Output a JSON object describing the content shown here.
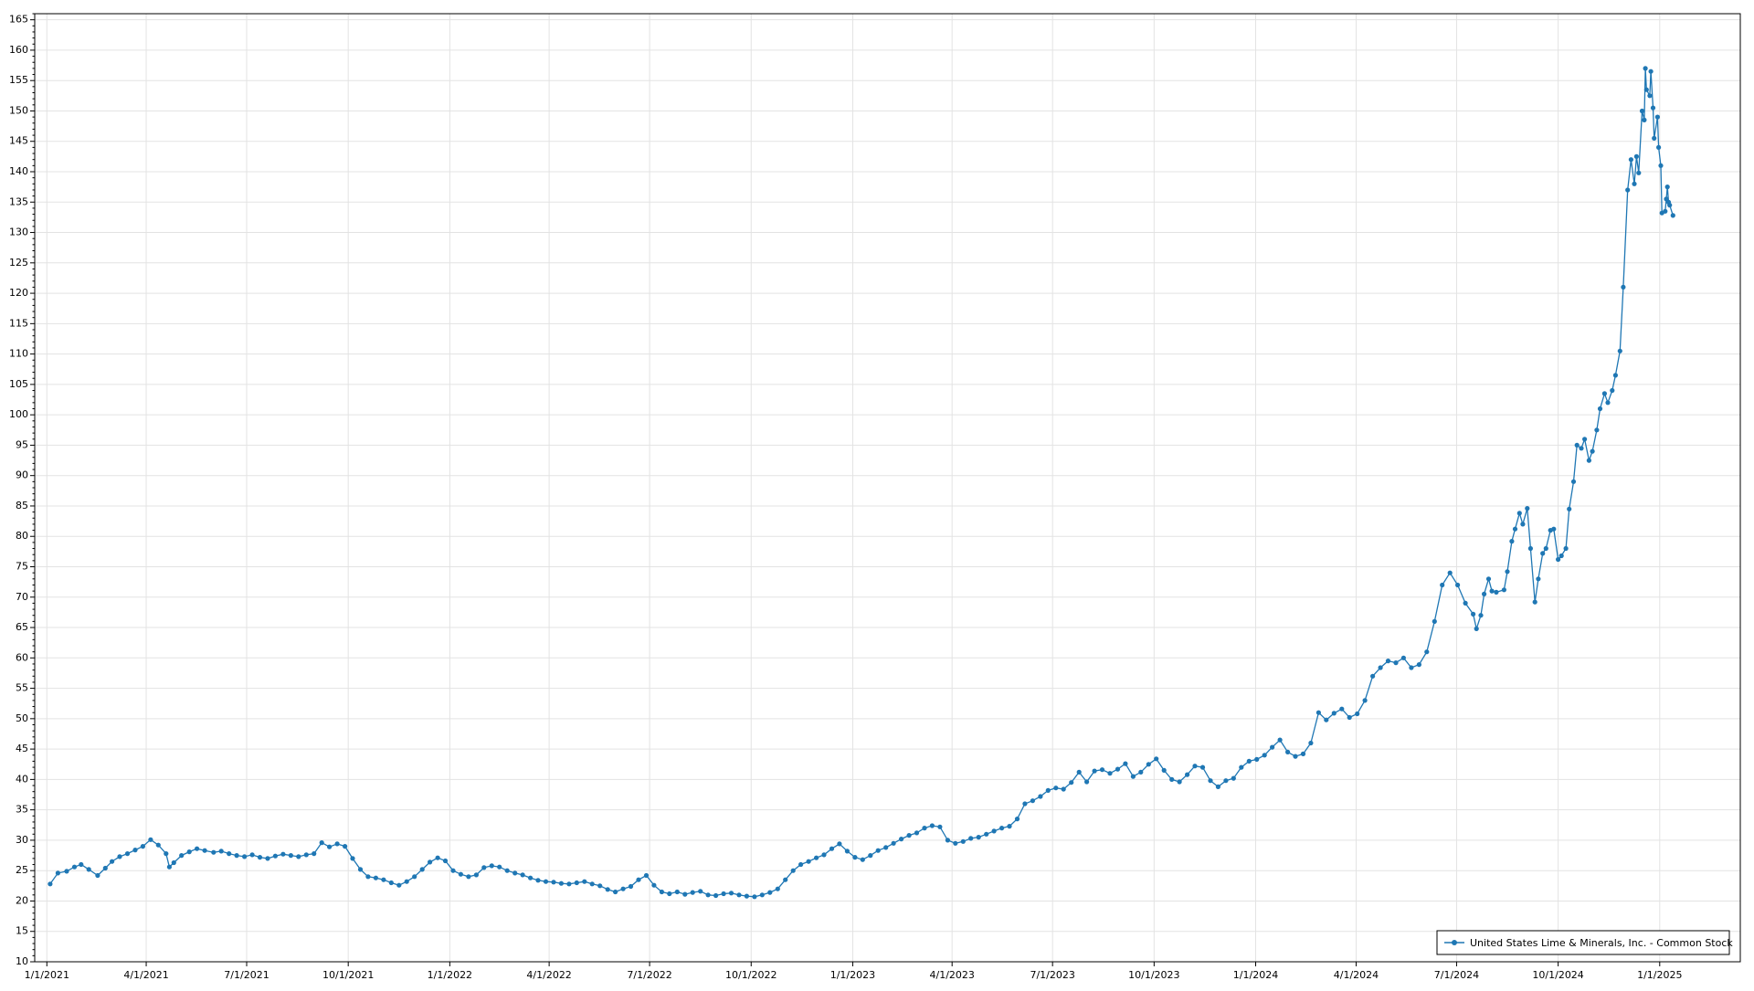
{
  "chart_data": {
    "type": "line",
    "title": "",
    "xlabel": "",
    "ylabel": "",
    "x_axis": {
      "type": "date",
      "range": [
        "2020-12-21",
        "2025-03-15"
      ],
      "ticks": [
        {
          "date": "2021-01-01",
          "label": "1/1/2021"
        },
        {
          "date": "2021-04-01",
          "label": "4/1/2021"
        },
        {
          "date": "2021-07-01",
          "label": "7/1/2021"
        },
        {
          "date": "2021-10-01",
          "label": "10/1/2021"
        },
        {
          "date": "2022-01-01",
          "label": "1/1/2022"
        },
        {
          "date": "2022-04-01",
          "label": "4/1/2022"
        },
        {
          "date": "2022-07-01",
          "label": "7/1/2022"
        },
        {
          "date": "2022-10-01",
          "label": "10/1/2022"
        },
        {
          "date": "2023-01-01",
          "label": "1/1/2023"
        },
        {
          "date": "2023-04-01",
          "label": "4/1/2023"
        },
        {
          "date": "2023-07-01",
          "label": "7/1/2023"
        },
        {
          "date": "2023-10-01",
          "label": "10/1/2023"
        },
        {
          "date": "2024-01-01",
          "label": "1/1/2024"
        },
        {
          "date": "2024-04-01",
          "label": "4/1/2024"
        },
        {
          "date": "2024-07-01",
          "label": "7/1/2024"
        },
        {
          "date": "2024-10-01",
          "label": "10/1/2024"
        },
        {
          "date": "2025-01-01",
          "label": "1/1/2025"
        }
      ]
    },
    "y_axis": {
      "min": 10,
      "max": 166,
      "major_step": 5,
      "ticks": [
        "10",
        "15",
        "20",
        "25",
        "30",
        "35",
        "40",
        "45",
        "50",
        "55",
        "60",
        "65",
        "70",
        "75",
        "80",
        "85",
        "90",
        "95",
        "100",
        "105",
        "110",
        "115",
        "120",
        "125",
        "130",
        "135",
        "140",
        "145",
        "150",
        "155",
        "160",
        "165"
      ]
    },
    "grid": true,
    "legend": {
      "position": "bottom-right"
    },
    "series": [
      {
        "name": "United States Lime & Minerals, Inc. - Common Stock",
        "color": "#1f77b4",
        "marker": "circle",
        "points": [
          [
            "2021-01-04",
            22.8
          ],
          [
            "2021-01-11",
            24.6
          ],
          [
            "2021-01-19",
            24.9
          ],
          [
            "2021-01-26",
            25.6
          ],
          [
            "2021-02-01",
            26.0
          ],
          [
            "2021-02-08",
            25.2
          ],
          [
            "2021-02-16",
            24.2
          ],
          [
            "2021-02-23",
            25.4
          ],
          [
            "2021-03-01",
            26.5
          ],
          [
            "2021-03-08",
            27.3
          ],
          [
            "2021-03-15",
            27.8
          ],
          [
            "2021-03-22",
            28.4
          ],
          [
            "2021-03-29",
            29.0
          ],
          [
            "2021-04-05",
            30.1
          ],
          [
            "2021-04-12",
            29.2
          ],
          [
            "2021-04-19",
            27.8
          ],
          [
            "2021-04-22",
            25.6
          ],
          [
            "2021-04-26",
            26.3
          ],
          [
            "2021-05-03",
            27.5
          ],
          [
            "2021-05-10",
            28.1
          ],
          [
            "2021-05-17",
            28.6
          ],
          [
            "2021-05-24",
            28.3
          ],
          [
            "2021-06-01",
            28.0
          ],
          [
            "2021-06-08",
            28.2
          ],
          [
            "2021-06-15",
            27.8
          ],
          [
            "2021-06-22",
            27.5
          ],
          [
            "2021-06-29",
            27.3
          ],
          [
            "2021-07-06",
            27.6
          ],
          [
            "2021-07-13",
            27.2
          ],
          [
            "2021-07-20",
            27.0
          ],
          [
            "2021-07-27",
            27.4
          ],
          [
            "2021-08-03",
            27.7
          ],
          [
            "2021-08-10",
            27.5
          ],
          [
            "2021-08-17",
            27.3
          ],
          [
            "2021-08-24",
            27.6
          ],
          [
            "2021-08-31",
            27.8
          ],
          [
            "2021-09-07",
            29.6
          ],
          [
            "2021-09-14",
            28.9
          ],
          [
            "2021-09-21",
            29.4
          ],
          [
            "2021-09-28",
            29.0
          ],
          [
            "2021-10-05",
            27.0
          ],
          [
            "2021-10-12",
            25.2
          ],
          [
            "2021-10-19",
            24.0
          ],
          [
            "2021-10-26",
            23.8
          ],
          [
            "2021-11-02",
            23.5
          ],
          [
            "2021-11-09",
            23.0
          ],
          [
            "2021-11-16",
            22.6
          ],
          [
            "2021-11-23",
            23.2
          ],
          [
            "2021-11-30",
            24.0
          ],
          [
            "2021-12-07",
            25.2
          ],
          [
            "2021-12-14",
            26.4
          ],
          [
            "2021-12-21",
            27.1
          ],
          [
            "2021-12-28",
            26.6
          ],
          [
            "2022-01-04",
            25.0
          ],
          [
            "2022-01-11",
            24.4
          ],
          [
            "2022-01-18",
            24.0
          ],
          [
            "2022-01-25",
            24.3
          ],
          [
            "2022-02-01",
            25.5
          ],
          [
            "2022-02-08",
            25.8
          ],
          [
            "2022-02-15",
            25.6
          ],
          [
            "2022-02-22",
            25.0
          ],
          [
            "2022-03-01",
            24.6
          ],
          [
            "2022-03-08",
            24.3
          ],
          [
            "2022-03-15",
            23.8
          ],
          [
            "2022-03-22",
            23.4
          ],
          [
            "2022-03-29",
            23.2
          ],
          [
            "2022-04-05",
            23.1
          ],
          [
            "2022-04-12",
            22.9
          ],
          [
            "2022-04-19",
            22.8
          ],
          [
            "2022-04-26",
            23.0
          ],
          [
            "2022-05-03",
            23.2
          ],
          [
            "2022-05-10",
            22.8
          ],
          [
            "2022-05-17",
            22.5
          ],
          [
            "2022-05-24",
            21.9
          ],
          [
            "2022-05-31",
            21.5
          ],
          [
            "2022-06-07",
            22.0
          ],
          [
            "2022-06-14",
            22.4
          ],
          [
            "2022-06-21",
            23.5
          ],
          [
            "2022-06-28",
            24.2
          ],
          [
            "2022-07-05",
            22.6
          ],
          [
            "2022-07-12",
            21.5
          ],
          [
            "2022-07-19",
            21.2
          ],
          [
            "2022-07-26",
            21.5
          ],
          [
            "2022-08-02",
            21.1
          ],
          [
            "2022-08-09",
            21.4
          ],
          [
            "2022-08-16",
            21.6
          ],
          [
            "2022-08-23",
            21.0
          ],
          [
            "2022-08-30",
            20.9
          ],
          [
            "2022-09-06",
            21.2
          ],
          [
            "2022-09-13",
            21.3
          ],
          [
            "2022-09-20",
            21.0
          ],
          [
            "2022-09-27",
            20.8
          ],
          [
            "2022-10-04",
            20.7
          ],
          [
            "2022-10-11",
            21.0
          ],
          [
            "2022-10-18",
            21.4
          ],
          [
            "2022-10-25",
            22.0
          ],
          [
            "2022-11-01",
            23.5
          ],
          [
            "2022-11-08",
            25.0
          ],
          [
            "2022-11-15",
            26.0
          ],
          [
            "2022-11-22",
            26.5
          ],
          [
            "2022-11-29",
            27.1
          ],
          [
            "2022-12-06",
            27.6
          ],
          [
            "2022-12-13",
            28.6
          ],
          [
            "2022-12-20",
            29.4
          ],
          [
            "2022-12-27",
            28.2
          ],
          [
            "2023-01-03",
            27.2
          ],
          [
            "2023-01-10",
            26.8
          ],
          [
            "2023-01-17",
            27.5
          ],
          [
            "2023-01-24",
            28.3
          ],
          [
            "2023-01-31",
            28.8
          ],
          [
            "2023-02-07",
            29.5
          ],
          [
            "2023-02-14",
            30.2
          ],
          [
            "2023-02-21",
            30.8
          ],
          [
            "2023-02-28",
            31.2
          ],
          [
            "2023-03-07",
            32.0
          ],
          [
            "2023-03-14",
            32.4
          ],
          [
            "2023-03-21",
            32.2
          ],
          [
            "2023-03-28",
            30.0
          ],
          [
            "2023-04-04",
            29.5
          ],
          [
            "2023-04-11",
            29.8
          ],
          [
            "2023-04-18",
            30.3
          ],
          [
            "2023-04-25",
            30.5
          ],
          [
            "2023-05-02",
            31.0
          ],
          [
            "2023-05-09",
            31.5
          ],
          [
            "2023-05-16",
            32.0
          ],
          [
            "2023-05-23",
            32.3
          ],
          [
            "2023-05-30",
            33.5
          ],
          [
            "2023-06-06",
            36.0
          ],
          [
            "2023-06-13",
            36.5
          ],
          [
            "2023-06-20",
            37.2
          ],
          [
            "2023-06-27",
            38.2
          ],
          [
            "2023-07-04",
            38.6
          ],
          [
            "2023-07-11",
            38.4
          ],
          [
            "2023-07-18",
            39.5
          ],
          [
            "2023-07-25",
            41.2
          ],
          [
            "2023-08-01",
            39.6
          ],
          [
            "2023-08-08",
            41.4
          ],
          [
            "2023-08-15",
            41.6
          ],
          [
            "2023-08-22",
            41.0
          ],
          [
            "2023-08-29",
            41.7
          ],
          [
            "2023-09-05",
            42.6
          ],
          [
            "2023-09-12",
            40.5
          ],
          [
            "2023-09-19",
            41.2
          ],
          [
            "2023-09-26",
            42.5
          ],
          [
            "2023-10-03",
            43.4
          ],
          [
            "2023-10-10",
            41.5
          ],
          [
            "2023-10-17",
            40.0
          ],
          [
            "2023-10-24",
            39.6
          ],
          [
            "2023-10-31",
            40.8
          ],
          [
            "2023-11-07",
            42.2
          ],
          [
            "2023-11-14",
            42.0
          ],
          [
            "2023-11-21",
            39.8
          ],
          [
            "2023-11-28",
            38.8
          ],
          [
            "2023-12-05",
            39.8
          ],
          [
            "2023-12-12",
            40.2
          ],
          [
            "2023-12-19",
            42.0
          ],
          [
            "2023-12-26",
            43.0
          ],
          [
            "2024-01-02",
            43.3
          ],
          [
            "2024-01-09",
            44.0
          ],
          [
            "2024-01-16",
            45.3
          ],
          [
            "2024-01-23",
            46.5
          ],
          [
            "2024-01-30",
            44.5
          ],
          [
            "2024-02-06",
            43.8
          ],
          [
            "2024-02-13",
            44.2
          ],
          [
            "2024-02-20",
            46.0
          ],
          [
            "2024-02-27",
            51.0
          ],
          [
            "2024-03-05",
            49.8
          ],
          [
            "2024-03-12",
            50.9
          ],
          [
            "2024-03-19",
            51.6
          ],
          [
            "2024-03-26",
            50.2
          ],
          [
            "2024-04-02",
            50.8
          ],
          [
            "2024-04-09",
            53.0
          ],
          [
            "2024-04-16",
            57.0
          ],
          [
            "2024-04-23",
            58.4
          ],
          [
            "2024-04-30",
            59.5
          ],
          [
            "2024-05-07",
            59.2
          ],
          [
            "2024-05-14",
            60.0
          ],
          [
            "2024-05-21",
            58.4
          ],
          [
            "2024-05-28",
            58.9
          ],
          [
            "2024-06-04",
            61.0
          ],
          [
            "2024-06-11",
            66.0
          ],
          [
            "2024-06-18",
            72.0
          ],
          [
            "2024-06-25",
            74.0
          ],
          [
            "2024-07-02",
            72.0
          ],
          [
            "2024-07-09",
            69.0
          ],
          [
            "2024-07-16",
            67.2
          ],
          [
            "2024-07-19",
            64.8
          ],
          [
            "2024-07-23",
            67.0
          ],
          [
            "2024-07-26",
            70.5
          ],
          [
            "2024-07-30",
            73.0
          ],
          [
            "2024-08-02",
            71.0
          ],
          [
            "2024-08-06",
            70.8
          ],
          [
            "2024-08-13",
            71.2
          ],
          [
            "2024-08-16",
            74.2
          ],
          [
            "2024-08-20",
            79.2
          ],
          [
            "2024-08-23",
            81.2
          ],
          [
            "2024-08-27",
            83.8
          ],
          [
            "2024-08-30",
            82.0
          ],
          [
            "2024-09-03",
            84.6
          ],
          [
            "2024-09-06",
            78.0
          ],
          [
            "2024-09-10",
            69.2
          ],
          [
            "2024-09-13",
            73.0
          ],
          [
            "2024-09-17",
            77.2
          ],
          [
            "2024-09-20",
            78.0
          ],
          [
            "2024-09-24",
            81.0
          ],
          [
            "2024-09-27",
            81.2
          ],
          [
            "2024-10-01",
            76.2
          ],
          [
            "2024-10-04",
            76.8
          ],
          [
            "2024-10-08",
            78.0
          ],
          [
            "2024-10-11",
            84.5
          ],
          [
            "2024-10-15",
            89.0
          ],
          [
            "2024-10-18",
            95.0
          ],
          [
            "2024-10-22",
            94.5
          ],
          [
            "2024-10-25",
            96.0
          ],
          [
            "2024-10-29",
            92.5
          ],
          [
            "2024-11-01",
            94.0
          ],
          [
            "2024-11-05",
            97.5
          ],
          [
            "2024-11-08",
            101.0
          ],
          [
            "2024-11-12",
            103.5
          ],
          [
            "2024-11-15",
            102.0
          ],
          [
            "2024-11-19",
            104.0
          ],
          [
            "2024-11-22",
            106.5
          ],
          [
            "2024-11-26",
            110.5
          ],
          [
            "2024-11-29",
            121.0
          ],
          [
            "2024-12-03",
            137.0
          ],
          [
            "2024-12-06",
            142.0
          ],
          [
            "2024-12-09",
            138.0
          ],
          [
            "2024-12-11",
            142.5
          ],
          [
            "2024-12-13",
            139.8
          ],
          [
            "2024-12-16",
            150.0
          ],
          [
            "2024-12-18",
            148.5
          ],
          [
            "2024-12-19",
            157.0
          ],
          [
            "2024-12-20",
            153.5
          ],
          [
            "2024-12-23",
            152.5
          ],
          [
            "2024-12-24",
            156.5
          ],
          [
            "2024-12-26",
            150.5
          ],
          [
            "2024-12-27",
            145.5
          ],
          [
            "2024-12-30",
            149.0
          ],
          [
            "2024-12-31",
            144.0
          ],
          [
            "2025-01-02",
            141.0
          ],
          [
            "2025-01-03",
            133.2
          ],
          [
            "2025-01-06",
            133.5
          ],
          [
            "2025-01-07",
            135.5
          ],
          [
            "2025-01-08",
            137.5
          ],
          [
            "2025-01-09",
            135.0
          ],
          [
            "2025-01-10",
            134.5
          ],
          [
            "2025-01-13",
            132.8
          ]
        ]
      }
    ]
  }
}
